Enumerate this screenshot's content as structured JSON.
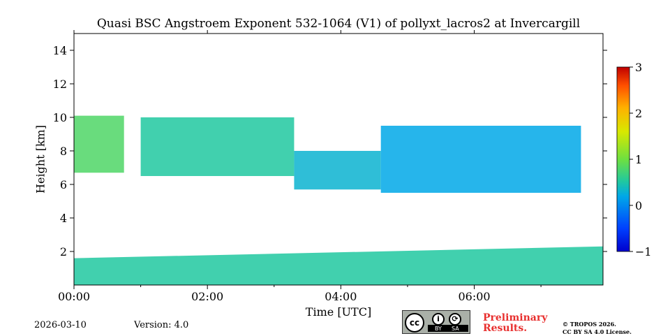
{
  "chart_data": {
    "type": "heatmap",
    "title": "Quasi BSC Angstroem Exponent 532-1064 (V1) of pollyxt_lacros2 at Invercargill",
    "xlabel": "Time [UTC]",
    "ylabel": "Height [km]",
    "x_unit": "hours UTC",
    "xlim": [
      0,
      7.93
    ],
    "ylim": [
      0,
      15
    ],
    "x_ticks": [
      {
        "value": 0,
        "label": "00:00"
      },
      {
        "value": 2,
        "label": "02:00"
      },
      {
        "value": 4,
        "label": "04:00"
      },
      {
        "value": 6,
        "label": "06:00"
      }
    ],
    "y_ticks": [
      {
        "value": 2,
        "label": "2"
      },
      {
        "value": 4,
        "label": "4"
      },
      {
        "value": 6,
        "label": "6"
      },
      {
        "value": 8,
        "label": "8"
      },
      {
        "value": 10,
        "label": "10"
      },
      {
        "value": 12,
        "label": "12"
      },
      {
        "value": 14,
        "label": "14"
      }
    ],
    "colorbar": {
      "colormap": "jet",
      "range": [
        -1,
        3
      ],
      "ticks": [
        {
          "value": 3,
          "label": "3"
        },
        {
          "value": 2,
          "label": "2"
        },
        {
          "value": 1,
          "label": "1"
        },
        {
          "value": 0,
          "label": "0"
        },
        {
          "value": -1,
          "label": "−1"
        }
      ]
    },
    "features": [
      {
        "name": "boundary-layer",
        "x_range": [
          0,
          7.93
        ],
        "height_bottom_km": 0,
        "height_top_km": [
          1.6,
          2.3
        ],
        "angstroem_typical": 0.5
      },
      {
        "name": "upper-aerosol-layer-early",
        "x_range": [
          0,
          0.75
        ],
        "height_bottom_km": 6.7,
        "height_top_km": 10.1,
        "angstroem_typical": 0.8
      },
      {
        "name": "cirrus-band",
        "x_range": [
          1.0,
          3.3
        ],
        "height_bottom_km": 6.5,
        "height_top_km": 10.0,
        "angstroem_typical": 0.5
      },
      {
        "name": "descending-layer",
        "x_range": [
          3.3,
          4.6
        ],
        "height_bottom_km": 5.7,
        "height_top_km": 8.0,
        "angstroem_typical": 0.3
      },
      {
        "name": "late-cloud-layer",
        "x_range": [
          4.6,
          7.6
        ],
        "height_bottom_km": 5.5,
        "height_top_km": 9.5,
        "angstroem_typical": 0.2
      }
    ]
  },
  "footer": {
    "date": "2026-03-10",
    "version": "Version: 4.0",
    "preliminary_line1": "Preliminary",
    "preliminary_line2": "Results.",
    "copyright_line1": "© TROPOS 2026.",
    "copyright_line2": "CC BY SA 4.0 License.",
    "license_badge": {
      "cc": "cc",
      "by": "BY",
      "sa": "SA"
    }
  }
}
